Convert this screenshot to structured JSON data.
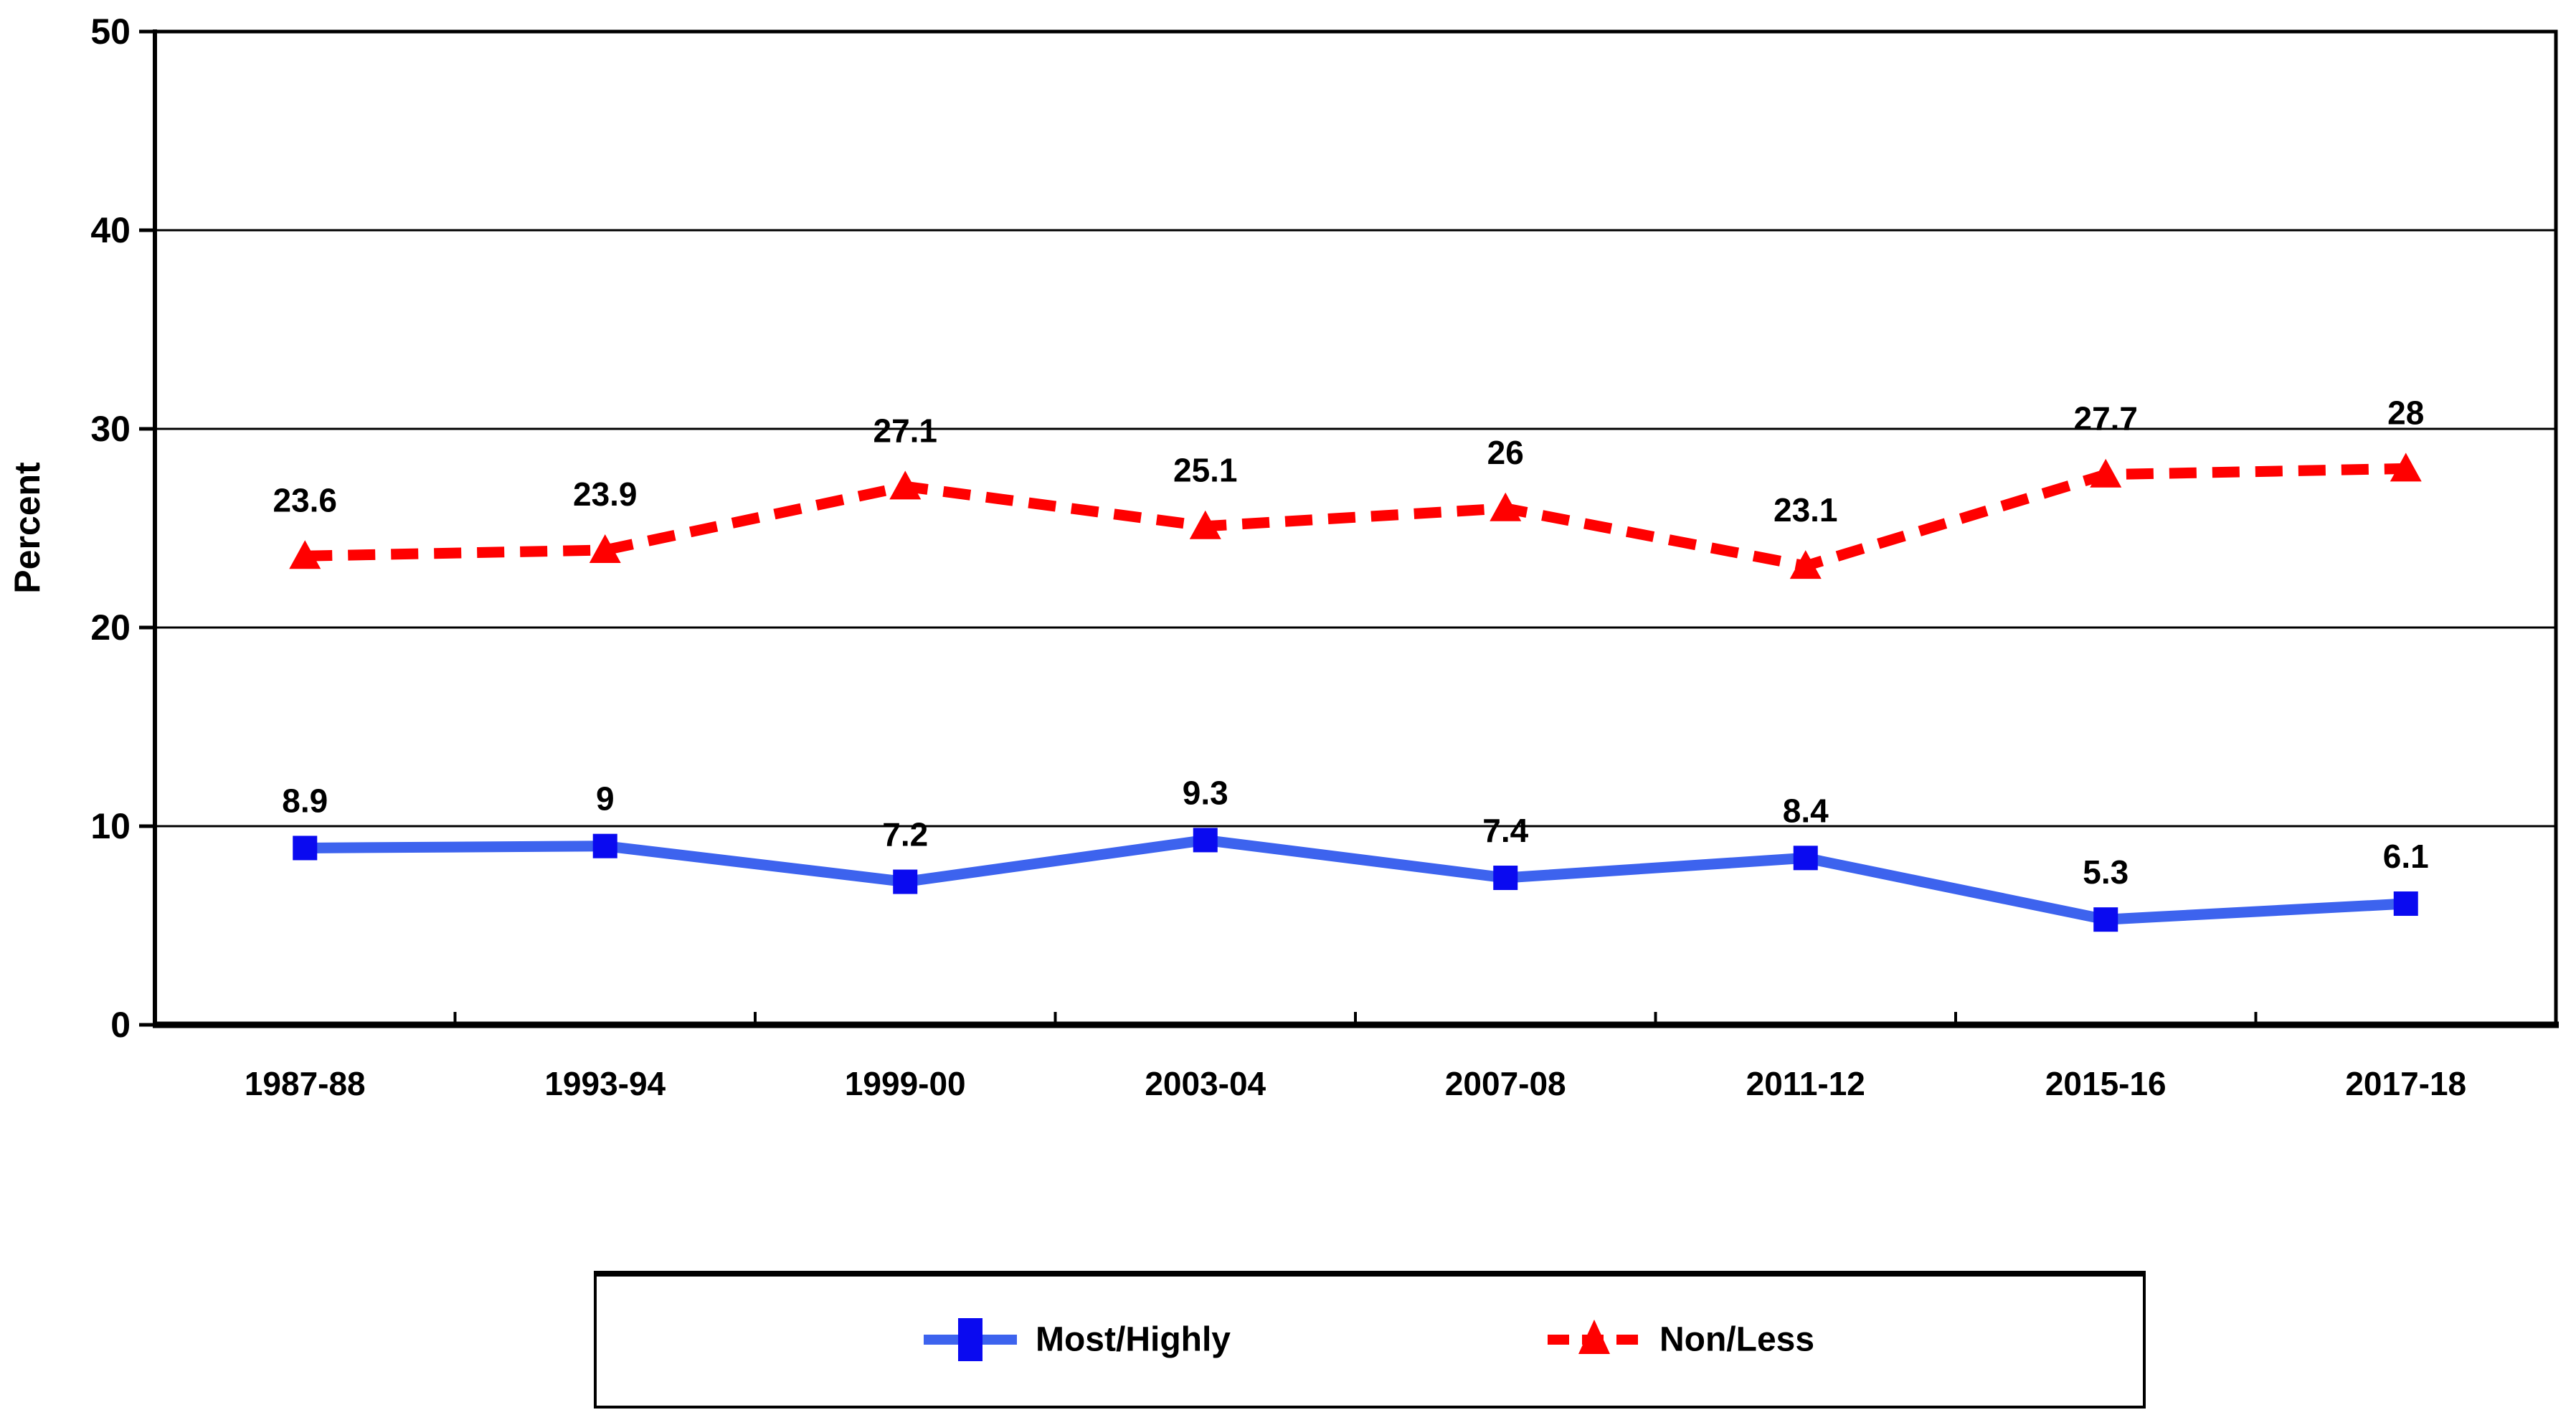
{
  "figure": {
    "background": "#FFFFFF"
  },
  "chart_data": {
    "type": "line",
    "title": "",
    "ylabel": "Percent",
    "xlabel": "",
    "categories": [
      "1987-88",
      "1993-94",
      "1999-00",
      "2003-04",
      "2007-08",
      "2011-12",
      "2015-16",
      "2017-18"
    ],
    "series": [
      {
        "name": "Most/Highly",
        "values": [
          8.9,
          9,
          7.2,
          9.3,
          7.4,
          8.4,
          5.3,
          6.1
        ],
        "color": "#3D63EE",
        "marker_color": "#0A0AF0",
        "marker": "square",
        "line_style": "solid"
      },
      {
        "name": "Non/Less",
        "values": [
          23.6,
          23.9,
          27.1,
          25.1,
          26,
          23.1,
          27.7,
          28
        ],
        "color": "#FF0000",
        "marker_color": "#FF0000",
        "marker": "triangle",
        "line_style": "dashed"
      }
    ],
    "ylim": [
      0,
      50
    ],
    "yticks": [
      0,
      10,
      20,
      30,
      40,
      50
    ],
    "grid": true,
    "legend_position": "bottom",
    "axis_color": "#000000",
    "text_color": "#000000"
  }
}
